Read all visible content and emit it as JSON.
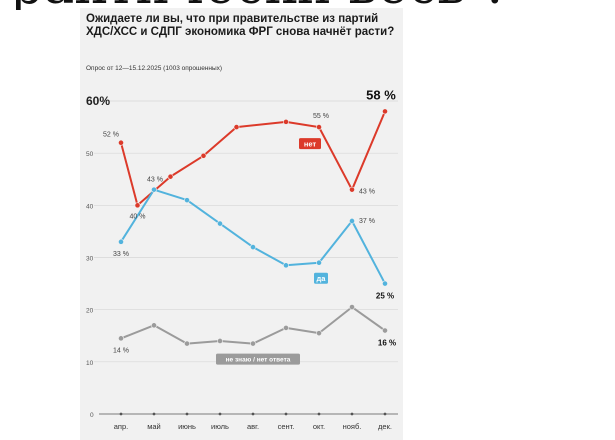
{
  "page_header_fragment": "рактически весь ?",
  "chart_data": {
    "type": "line",
    "title": "Ожидаете ли вы, что при правительстве из партий ХДС/ХСС и СДПГ экономика ФРГ снова начнёт расти?",
    "subtitle": "Опрос от 12—15.12.2025 (1003 опрошенных)",
    "categories": [
      "апр.",
      "май",
      "июнь",
      "июль",
      "авг.",
      "сент.",
      "окт.",
      "нояб.",
      "дек."
    ],
    "ylim": [
      0,
      60
    ],
    "y_ticks": [
      "60%",
      "50",
      "40",
      "30",
      "20",
      "10",
      "0"
    ],
    "grid": true,
    "series": [
      {
        "name": "нет",
        "color": "#dc3a2a",
        "points": [
          [
            "апр.",
            52
          ],
          [
            "апр.-май",
            40
          ],
          [
            "май-июнь",
            45.5
          ],
          [
            "июнь-июль",
            49.5
          ],
          [
            "июль-авг.",
            55
          ],
          [
            "сент.",
            56
          ],
          [
            "окт.",
            55
          ],
          [
            "нояб.",
            43
          ],
          [
            "дек.",
            58
          ]
        ]
      },
      {
        "name": "да",
        "color": "#52b3dd",
        "points": [
          [
            "апр.",
            33
          ],
          [
            "май",
            43
          ],
          [
            "июнь",
            41
          ],
          [
            "июль",
            36.5
          ],
          [
            "авг.",
            32
          ],
          [
            "сент.",
            28.5
          ],
          [
            "окт.",
            29
          ],
          [
            "нояб.",
            37
          ],
          [
            "дек.",
            25
          ]
        ]
      },
      {
        "name": "не знаю / нет ответа",
        "color": "#9b9b9b",
        "points": [
          [
            "апр.",
            14.5
          ],
          [
            "май",
            17
          ],
          [
            "июнь",
            13.5
          ],
          [
            "июль",
            14
          ],
          [
            "авг.",
            13.5
          ],
          [
            "сент.",
            16.5
          ],
          [
            "окт.",
            15.5
          ],
          [
            "нояб.",
            20.5
          ],
          [
            "дек.",
            16
          ]
        ]
      }
    ],
    "data_labels": [
      {
        "text": "52 %",
        "series": "нет",
        "x": "апр.",
        "y": 52
      },
      {
        "text": "40 %",
        "series": "нет",
        "x": "апр.-май",
        "y": 40
      },
      {
        "text": "55 %",
        "series": "нет",
        "x": "окт.",
        "y": 55
      },
      {
        "text": "43 %",
        "series": "нет",
        "x": "нояб.",
        "y": 43
      },
      {
        "text": "58 %",
        "series": "нет",
        "x": "дек.",
        "y": 58
      },
      {
        "text": "33 %",
        "series": "да",
        "x": "апр.",
        "y": 33
      },
      {
        "text": "43 %",
        "series": "да",
        "x": "май",
        "y": 43
      },
      {
        "text": "37 %",
        "series": "да",
        "x": "нояб.",
        "y": 37
      },
      {
        "text": "25 %",
        "series": "да",
        "x": "дек.",
        "y": 25
      },
      {
        "text": "14 %",
        "series": "не знаю / нет ответа",
        "x": "апр.",
        "y": 14.5
      },
      {
        "text": "16 %",
        "series": "не знаю / нет ответа",
        "x": "дек.",
        "y": 16
      }
    ],
    "series_tags": [
      {
        "text": "нет",
        "series": "нет",
        "x": "окт.",
        "y": 55
      },
      {
        "text": "да",
        "series": "да",
        "x": "окт.",
        "y": 29
      },
      {
        "text": "не знаю / нет ответа",
        "series": "не знаю / нет ответа",
        "x": "авг.",
        "y": 13.5
      }
    ]
  }
}
